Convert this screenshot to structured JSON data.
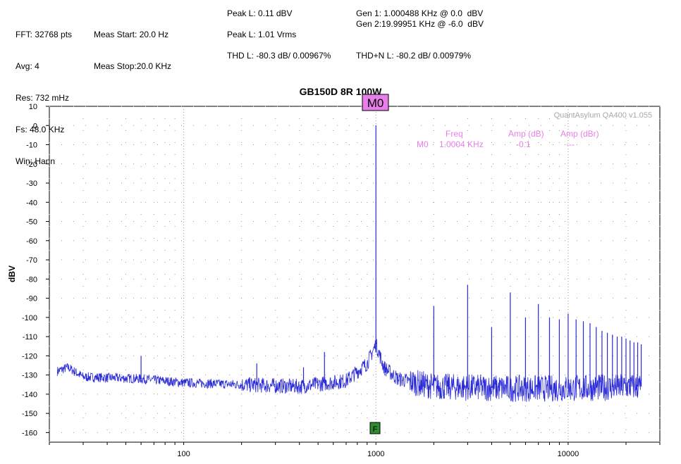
{
  "header": {
    "col1": [
      "FFT: 32768 pts",
      "Avg: 4",
      "Res: 732 mHz",
      "Fs: 48.0 KHz",
      "Win: Hann"
    ],
    "col2": [
      "Meas Start: 20.0 Hz",
      "Meas Stop:20.0 KHz"
    ],
    "peak_l_dbv": "Peak L: 0.11 dBV",
    "peak_l_vrms": "Peak L: 1.01 Vrms",
    "thd_l": "THD L: -80.3 dB/ 0.00967%",
    "gen1": "Gen 1: 1.000488 KHz @ 0.0  dBV",
    "gen2": "Gen 2:19.99951 KHz @ -6.0  dBV",
    "thdn_l": "THD+N L: -80.2 dB/ 0.00979%"
  },
  "watermark": "QuantAsylum QA400 v1.055",
  "marker": {
    "label": "M0",
    "flag": "F",
    "table_headers": [
      "Freq",
      "Amp (dB)",
      "Amp (dBr)"
    ],
    "row": [
      "M0",
      "1.0004 KHz",
      "-0.1",
      "---"
    ]
  },
  "colors": {
    "trace": "#2a2ad8",
    "marker": "#e87fe8",
    "flag_bg": "#2e8b2e",
    "grid": "#999999"
  },
  "chart_data": {
    "type": "line",
    "title": "GB150D 8R 100W",
    "xlabel": "",
    "ylabel": "dBV",
    "x_scale": "log",
    "xlim": [
      20,
      30000
    ],
    "ylim": [
      -165,
      10
    ],
    "x_ticks": [
      "100",
      "1000",
      "10000"
    ],
    "y_ticks": [
      "10",
      "0",
      "-10",
      "-20",
      "-30",
      "-40",
      "-50",
      "-60",
      "-70",
      "-80",
      "-90",
      "-100",
      "-110",
      "-120",
      "-130",
      "-140",
      "-150",
      "-160"
    ],
    "grid": true,
    "noise_floor_segments": [
      {
        "x": 22,
        "y": -128
      },
      {
        "x": 25,
        "y": -126
      },
      {
        "x": 30,
        "y": -131
      },
      {
        "x": 60,
        "y": -132
      },
      {
        "x": 100,
        "y": -134
      },
      {
        "x": 200,
        "y": -135
      },
      {
        "x": 400,
        "y": -136
      },
      {
        "x": 700,
        "y": -133
      },
      {
        "x": 900,
        "y": -124
      },
      {
        "x": 1000,
        "y": -114
      },
      {
        "x": 1100,
        "y": -126
      },
      {
        "x": 1300,
        "y": -132
      },
      {
        "x": 2000,
        "y": -136
      },
      {
        "x": 5000,
        "y": -137
      },
      {
        "x": 10000,
        "y": -137
      },
      {
        "x": 24000,
        "y": -136
      }
    ],
    "spikes": [
      {
        "x": 60,
        "y": -120
      },
      {
        "x": 240,
        "y": -124
      },
      {
        "x": 420,
        "y": -126
      },
      {
        "x": 540,
        "y": -118
      },
      {
        "x": 1000,
        "y": 0.1
      },
      {
        "x": 2000,
        "y": -94
      },
      {
        "x": 3000,
        "y": -83
      },
      {
        "x": 4000,
        "y": -105
      },
      {
        "x": 5000,
        "y": -87
      },
      {
        "x": 6000,
        "y": -100
      },
      {
        "x": 7000,
        "y": -93
      },
      {
        "x": 8000,
        "y": -100
      },
      {
        "x": 9000,
        "y": -101
      },
      {
        "x": 10000,
        "y": -98
      },
      {
        "x": 11000,
        "y": -101
      },
      {
        "x": 12000,
        "y": -102
      },
      {
        "x": 13000,
        "y": -103
      },
      {
        "x": 14000,
        "y": -105
      },
      {
        "x": 15000,
        "y": -107
      },
      {
        "x": 16000,
        "y": -108
      },
      {
        "x": 17000,
        "y": -109
      },
      {
        "x": 18000,
        "y": -110
      },
      {
        "x": 19000,
        "y": -110
      },
      {
        "x": 20000,
        "y": -111
      },
      {
        "x": 21000,
        "y": -112
      },
      {
        "x": 22000,
        "y": -113
      },
      {
        "x": 23000,
        "y": -113
      },
      {
        "x": 24000,
        "y": -114
      }
    ]
  }
}
